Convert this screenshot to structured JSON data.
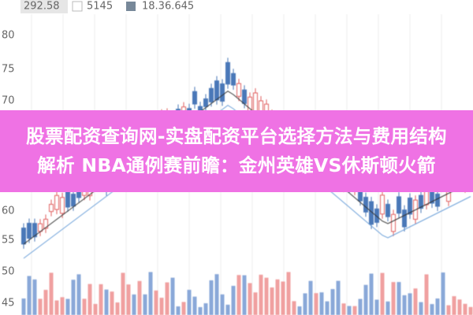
{
  "legend": {
    "price": "292.58",
    "volume": "5145",
    "ma": "18.36.645"
  },
  "axis_labels": [
    "80",
    "75",
    "70",
    "60",
    "55",
    "50",
    "45"
  ],
  "banner": {
    "line1": "股票配资查询网-实盘配资平台选择方法与费用结构",
    "line2": "解析 NBA通例赛前瞻：金州英雄VS休斯顿火箭"
  }
}
